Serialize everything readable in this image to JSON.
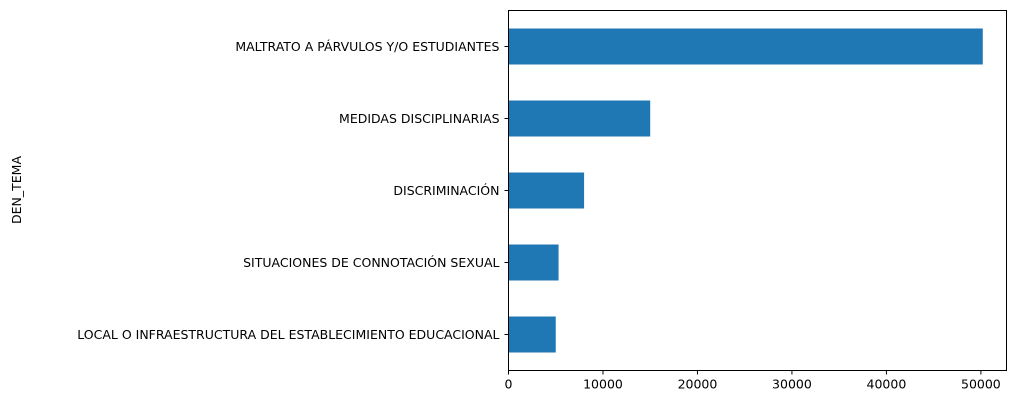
{
  "chart_data": {
    "type": "bar",
    "orientation": "horizontal",
    "title": "",
    "xlabel": "",
    "ylabel": "DEN_TEMA",
    "categories": [
      "LOCAL O INFRAESTRUCTURA DEL ESTABLECIMIENTO EDUCACIONAL",
      "SITUACIONES DE CONNOTACIÓN SEXUAL",
      "DISCRIMINACIÓN",
      "MEDIDAS DISCIPLINARIAS",
      "MALTRATO A PÁRVULOS Y/O ESTUDIANTES"
    ],
    "values": [
      5000,
      5300,
      8000,
      15000,
      50200
    ],
    "xlim": [
      0,
      52710
    ],
    "xticks": [
      0,
      10000,
      20000,
      30000,
      40000,
      50000
    ],
    "grid": false,
    "legend": "none",
    "bar_color": "#1f77b4"
  }
}
